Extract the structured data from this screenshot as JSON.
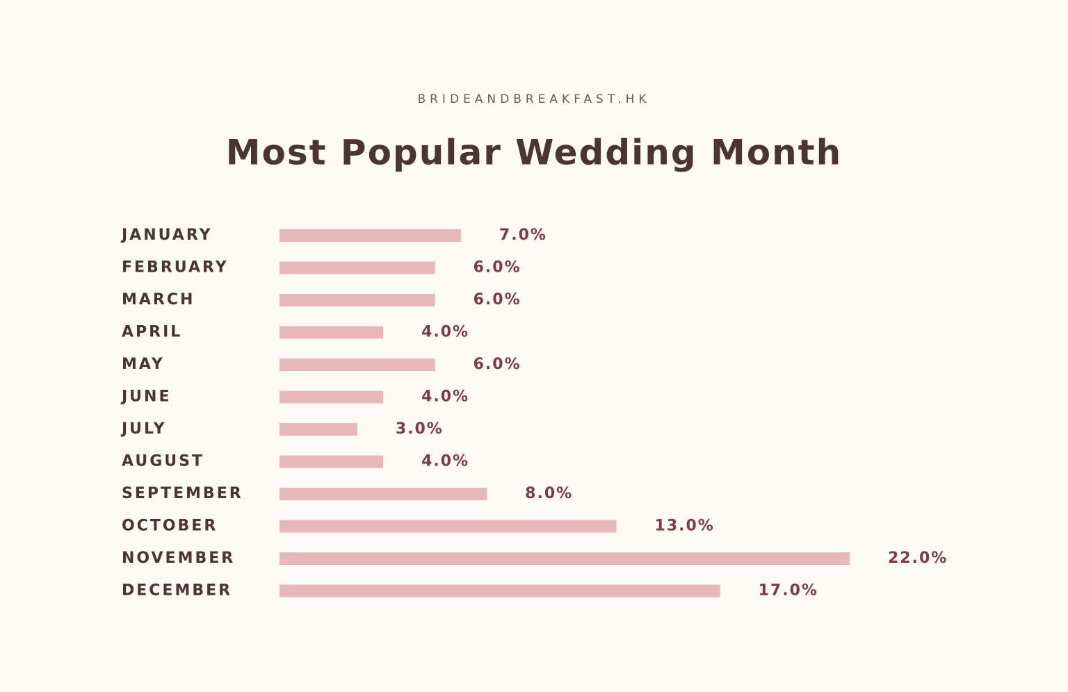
{
  "chart_data": {
    "type": "bar",
    "orientation": "horizontal",
    "subtitle": "BRIDEANDBREAKFAST.HK",
    "title": "Most Popular Wedding Month",
    "categories": [
      "JANUARY",
      "FEBRUARY",
      "MARCH",
      "APRIL",
      "MAY",
      "JUNE",
      "JULY",
      "AUGUST",
      "SEPTEMBER",
      "OCTOBER",
      "NOVEMBER",
      "DECEMBER"
    ],
    "values": [
      7,
      6,
      6,
      4,
      6,
      4,
      3,
      4,
      8,
      13,
      22,
      17
    ],
    "value_labels": [
      "7.0%",
      "6.0%",
      "6.0%",
      "4.0%",
      "6.0%",
      "4.0%",
      "3.0%",
      "4.0%",
      "8.0%",
      "13.0%",
      "22.0%",
      "17.0%"
    ],
    "color": "#e8b7b9"
  }
}
